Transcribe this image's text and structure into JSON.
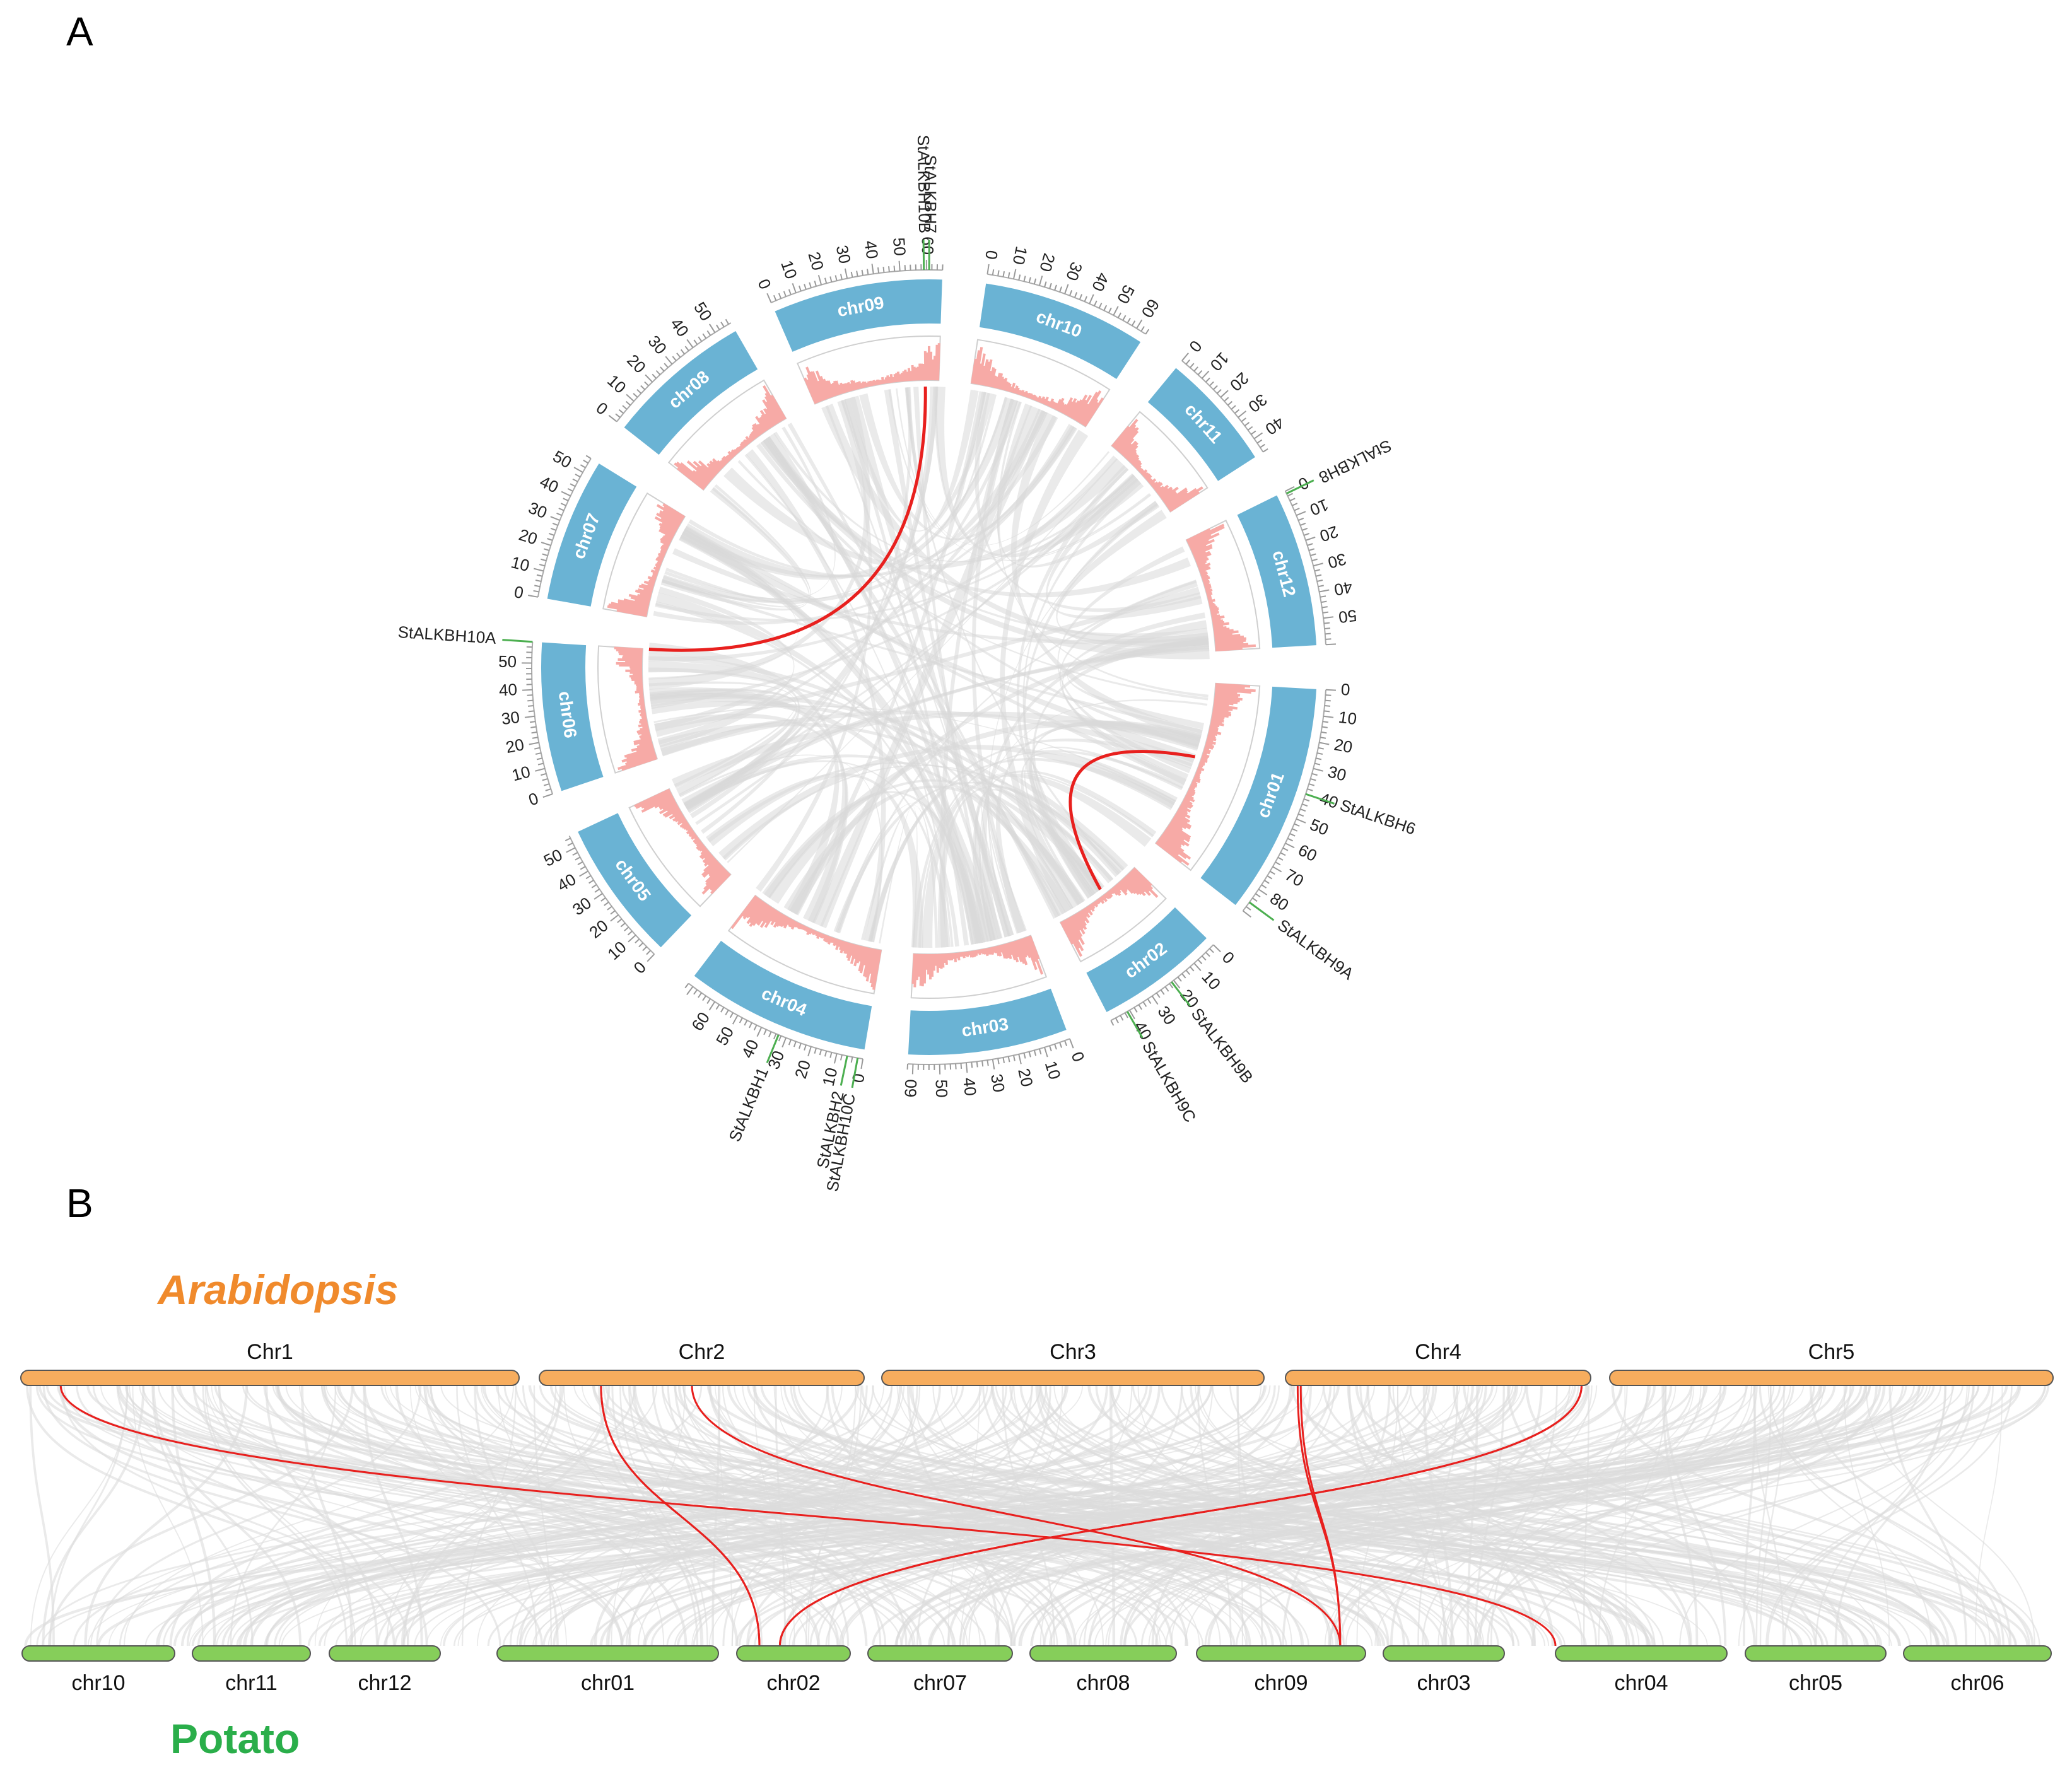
{
  "panels": {
    "a": "A",
    "b": "B"
  },
  "circos": {
    "chromosomes": [
      {
        "name": "chr01",
        "len": 90,
        "ticks": [
          "0",
          "10",
          "20",
          "30",
          "40",
          "50",
          "60",
          "70",
          "80"
        ]
      },
      {
        "name": "chr02",
        "len": 48,
        "ticks": [
          "0",
          "10",
          "20",
          "30",
          "40"
        ]
      },
      {
        "name": "chr03",
        "len": 62,
        "ticks": [
          "0",
          "10",
          "20",
          "30",
          "40",
          "50",
          "60"
        ]
      },
      {
        "name": "chr04",
        "len": 72,
        "ticks": [
          "0",
          "10",
          "20",
          "30",
          "40",
          "50",
          "60"
        ]
      },
      {
        "name": "chr05",
        "len": 55,
        "ticks": [
          "0",
          "10",
          "20",
          "30",
          "40",
          "50"
        ]
      },
      {
        "name": "chr06",
        "len": 58,
        "ticks": [
          "0",
          "10",
          "20",
          "30",
          "40",
          "50"
        ]
      },
      {
        "name": "chr07",
        "len": 56,
        "ticks": [
          "0",
          "10",
          "20",
          "30",
          "40",
          "50"
        ]
      },
      {
        "name": "chr08",
        "len": 57,
        "ticks": [
          "0",
          "10",
          "20",
          "30",
          "40",
          "50"
        ]
      },
      {
        "name": "chr09",
        "len": 66,
        "ticks": [
          "0",
          "10",
          "20",
          "30",
          "40",
          "50",
          "60"
        ]
      },
      {
        "name": "chr10",
        "len": 64,
        "ticks": [
          "0",
          "10",
          "20",
          "30",
          "40",
          "50",
          "60"
        ]
      },
      {
        "name": "chr11",
        "len": 46,
        "ticks": [
          "0",
          "10",
          "20",
          "30",
          "40"
        ]
      },
      {
        "name": "chr12",
        "len": 60,
        "ticks": [
          "0",
          "10",
          "20",
          "30",
          "40",
          "50"
        ]
      }
    ],
    "genes": [
      {
        "name": "StALKBH6",
        "chr": "chr01",
        "pos": 40
      },
      {
        "name": "StALKBH9A",
        "chr": "chr01",
        "pos": 86
      },
      {
        "name": "StALKBH9B",
        "chr": "chr02",
        "pos": 21
      },
      {
        "name": "StALKBH9C",
        "chr": "chr02",
        "pos": 41
      },
      {
        "name": "StALKBH1",
        "chr": "chr04",
        "pos": 33
      },
      {
        "name": "StALKBH2",
        "chr": "chr04",
        "pos": 6
      },
      {
        "name": "StALKBH10C",
        "chr": "chr04",
        "pos": 2
      },
      {
        "name": "StALKBH10A",
        "chr": "chr06",
        "pos": 58
      },
      {
        "name": "StALKBH10B",
        "chr": "chr09",
        "pos": 59
      },
      {
        "name": "StALKBH7",
        "chr": "chr09",
        "pos": 61
      },
      {
        "name": "StALKBH8",
        "chr": "chr12",
        "pos": 1
      }
    ],
    "segmental_duplications": [
      {
        "from": "StALKBH10A",
        "to": "StALKBH10B"
      },
      {
        "from": "StALKBH6",
        "to": "StALKBH9B"
      }
    ]
  },
  "synteny": {
    "species_top": "Arabidopsis",
    "species_bottom": "Potato",
    "top_chromosomes": [
      "Chr1",
      "Chr2",
      "Chr3",
      "Chr4",
      "Chr5"
    ],
    "bottom_chromosomes": [
      "chr10",
      "chr11",
      "chr12",
      "chr01",
      "chr02",
      "chr07",
      "chr08",
      "chr09",
      "chr03",
      "chr04",
      "chr05",
      "chr06"
    ],
    "links": [
      {
        "from": "Chr1",
        "to": "chr04"
      },
      {
        "from": "Chr2",
        "to": "chr02"
      },
      {
        "from": "Chr2",
        "to": "chr02"
      },
      {
        "from": "Chr2",
        "to": "chr09"
      },
      {
        "from": "Chr4",
        "to": "chr09"
      },
      {
        "from": "Chr4",
        "to": "chr09"
      },
      {
        "from": "Chr4",
        "to": "chr02"
      },
      {
        "from": "Chr4",
        "to": "chr02"
      }
    ]
  },
  "colors": {
    "chrom_blue": "#6AB3D4",
    "density": "#F7AAA6",
    "link_grey": "#D9D9D9",
    "link_red": "#E8201E",
    "arabidopsis": "#F7AD5E",
    "potato": "#86CE5A",
    "arabidopsis_label": "#F08A2C",
    "potato_label": "#2AAE4A",
    "gene_line": "#4CAF50"
  }
}
